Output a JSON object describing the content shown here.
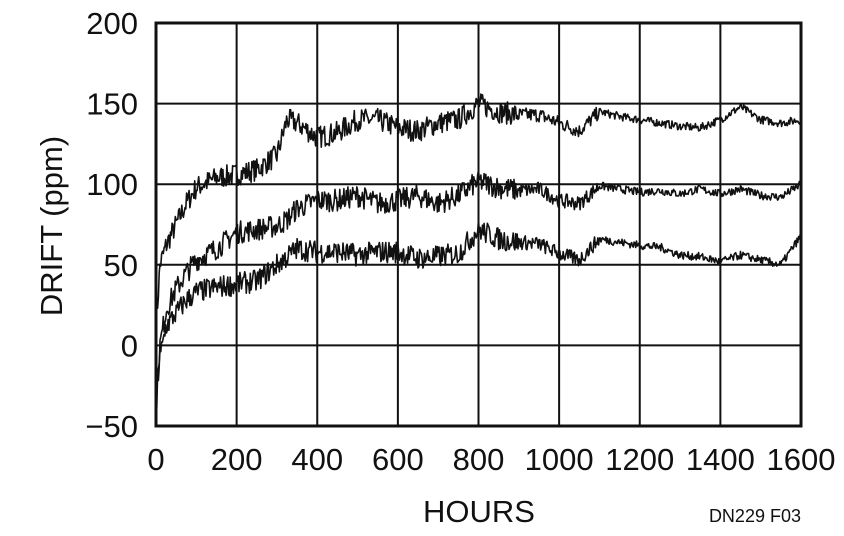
{
  "chart_data": {
    "type": "line",
    "title": "",
    "xlabel": "HOURS",
    "ylabel": "DRIFT (ppm)",
    "xlim": [
      0,
      1600
    ],
    "ylim": [
      -50,
      200
    ],
    "xticks": [
      0,
      200,
      400,
      600,
      800,
      1000,
      1200,
      1400,
      1600
    ],
    "xtick_labels": [
      "0",
      "200",
      "400",
      "600",
      "800",
      "1000",
      "1200",
      "1400",
      "1600"
    ],
    "yticks": [
      -50,
      0,
      50,
      100,
      150,
      200
    ],
    "ytick_labels": [
      "−50",
      "0",
      "50",
      "100",
      "150",
      "200"
    ],
    "grid": true,
    "legend": "none",
    "annotations": [
      "DN229 F03"
    ],
    "series": [
      {
        "x": [
          0,
          10,
          25,
          50,
          75,
          100,
          150,
          200,
          250,
          300,
          325,
          350,
          400,
          450,
          500,
          550,
          600,
          650,
          700,
          750,
          800,
          850,
          900,
          950,
          1000,
          1050,
          1100,
          1150,
          1200,
          1250,
          1300,
          1350,
          1400,
          1450,
          1500,
          1550,
          1600
        ],
        "values": [
          10,
          50,
          62,
          75,
          88,
          98,
          104,
          106,
          109,
          118,
          140,
          138,
          129,
          132,
          140,
          140,
          135,
          133,
          138,
          140,
          150,
          145,
          143,
          143,
          138,
          133,
          145,
          142,
          140,
          138,
          136,
          135,
          140,
          148,
          140,
          138,
          140
        ]
      },
      {
        "x": [
          0,
          10,
          25,
          50,
          75,
          100,
          150,
          200,
          250,
          300,
          325,
          350,
          400,
          450,
          500,
          550,
          600,
          650,
          700,
          750,
          800,
          850,
          900,
          950,
          1000,
          1050,
          1100,
          1150,
          1200,
          1250,
          1300,
          1350,
          1400,
          1450,
          1500,
          1550,
          1600
        ],
        "values": [
          -40,
          0,
          22,
          35,
          45,
          53,
          60,
          70,
          72,
          74,
          78,
          85,
          90,
          90,
          93,
          88,
          90,
          93,
          88,
          93,
          102,
          98,
          96,
          97,
          90,
          88,
          99,
          97,
          95,
          96,
          94,
          97,
          94,
          97,
          93,
          92,
          100
        ]
      },
      {
        "x": [
          0,
          10,
          25,
          50,
          75,
          100,
          150,
          200,
          250,
          300,
          325,
          350,
          400,
          450,
          500,
          550,
          600,
          650,
          700,
          750,
          800,
          850,
          900,
          950,
          1000,
          1050,
          1100,
          1150,
          1200,
          1250,
          1300,
          1350,
          1400,
          1450,
          1500,
          1550,
          1600
        ],
        "values": [
          -20,
          -8,
          12,
          20,
          28,
          33,
          36,
          38,
          40,
          50,
          55,
          60,
          58,
          58,
          56,
          58,
          58,
          54,
          55,
          57,
          72,
          66,
          64,
          63,
          57,
          53,
          66,
          64,
          62,
          61,
          56,
          55,
          52,
          56,
          53,
          50,
          68
        ]
      }
    ]
  }
}
